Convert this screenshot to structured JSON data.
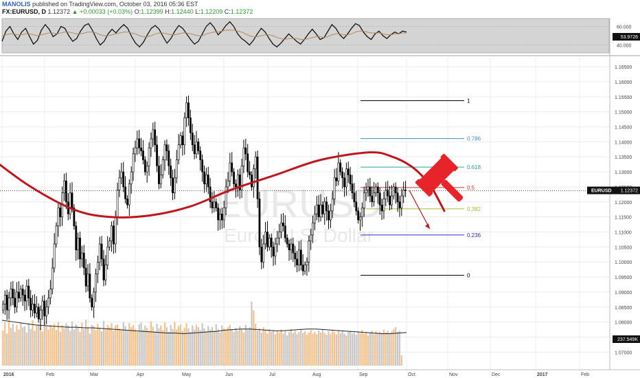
{
  "header": {
    "author": "MANOLIS",
    "published": "published on TradingView.com, October 03, 2016 05:36 EST",
    "symbol": "FX:EURUSD, D",
    "price": "1.12372",
    "change": "▲ +0.00033 (+0.03%)",
    "o_label": "O:",
    "o": "1.12399",
    "h_label": "H:",
    "h": "1.12440",
    "l_label": "L:",
    "l": "1.12209",
    "c_label": "C:",
    "c": "1.12372"
  },
  "watermark": {
    "symbol": "EURUSD",
    "name": "Euro / U.S. Dollar"
  },
  "colors": {
    "candle": "#000000",
    "curve": "#c0161b",
    "hammer": "#e8242b",
    "fib_1": "#000000",
    "fib_0786": "#3a8fc9",
    "fib_0618": "#26a69a",
    "fib_05": "#e53935",
    "fib_0382": "#a0bb2a",
    "fib_0236": "#2c2cc8",
    "fib_0": "#000000",
    "vol_up": "#f5c28c",
    "vol_down": "#c8c8c8",
    "osc_panel": "#d4d4d4"
  },
  "chart_data": [
    {
      "type": "line",
      "panel": "oscillator",
      "ylim": [
        33,
        67
      ],
      "y_ticks": [
        "60.000",
        "40.000"
      ],
      "last_value_label": "53.9726",
      "series": [
        {
          "values": [
            44,
            55,
            60,
            52,
            46,
            54,
            58,
            49,
            41,
            45,
            56,
            62,
            57,
            49,
            52,
            60,
            58,
            50,
            44,
            47,
            55,
            61,
            63,
            56,
            47,
            40,
            44,
            52,
            57,
            53,
            58,
            62,
            58,
            49,
            42,
            38,
            43,
            51,
            58,
            61,
            57,
            49,
            42,
            47,
            55,
            61,
            58,
            52,
            46,
            41,
            44,
            52,
            60,
            64,
            59,
            51,
            55,
            61,
            65,
            60,
            52,
            47,
            44,
            40,
            45,
            52,
            58,
            54,
            47,
            41,
            38,
            42,
            47,
            52,
            48,
            44,
            41,
            46,
            52,
            57,
            52,
            46,
            48,
            55,
            62,
            58,
            51,
            47,
            52,
            58,
            63,
            61,
            54,
            49,
            46,
            52,
            55,
            50,
            47,
            51,
            54,
            52,
            55,
            54
          ]
        },
        {
          "values": [
            50,
            51,
            52,
            52,
            51,
            51,
            52,
            52,
            51,
            50,
            51,
            52,
            53,
            53,
            52,
            53,
            54,
            54,
            53,
            52,
            52,
            53,
            54,
            54,
            53,
            51,
            50,
            50,
            51,
            52,
            53,
            54,
            54,
            53,
            52,
            50,
            49,
            49,
            50,
            52,
            53,
            53,
            52,
            51,
            51,
            52,
            53,
            53,
            52,
            51,
            50,
            50,
            52,
            53,
            54,
            54,
            55,
            56,
            56,
            56,
            55,
            54,
            52,
            50,
            49,
            49,
            50,
            51,
            51,
            50,
            48,
            47,
            46,
            47,
            47,
            47,
            46,
            46,
            47,
            48,
            49,
            49,
            48,
            49,
            51,
            52,
            52,
            51,
            51,
            52,
            54,
            55,
            55,
            54,
            53,
            53,
            53,
            52,
            51,
            51,
            52,
            52,
            53,
            53
          ]
        }
      ]
    },
    {
      "type": "candlestick",
      "panel": "price",
      "ylim": [
        1.0655,
        1.168
      ],
      "y_ticks": [
        "1.16500",
        "1.16000",
        "1.15500",
        "1.15000",
        "1.14500",
        "1.14000",
        "1.13500",
        "1.13000",
        "1.12500",
        "1.12000",
        "1.11500",
        "1.11000",
        "1.10500",
        "1.10000",
        "1.09500",
        "1.09000",
        "1.08500",
        "1.08000",
        "1.07500",
        "1.07000"
      ],
      "x_ticks": [
        "2016",
        "Feb",
        "Mar",
        "Apr",
        "May",
        "Jun",
        "Jul",
        "Aug",
        "Sep",
        "Oct",
        "Nov",
        "Dec",
        "2017",
        "Feb"
      ],
      "last_price_label": "1.12372",
      "symbol_label": "EURUSD",
      "closes": [
        1.086,
        1.089,
        1.084,
        1.088,
        1.091,
        1.088,
        1.085,
        1.09,
        1.088,
        1.091,
        1.089,
        1.087,
        1.092,
        1.088,
        1.084,
        1.086,
        1.083,
        1.085,
        1.081,
        1.084,
        1.087,
        1.082,
        1.085,
        1.088,
        1.091,
        1.098,
        1.106,
        1.112,
        1.118,
        1.115,
        1.123,
        1.127,
        1.12,
        1.116,
        1.123,
        1.118,
        1.112,
        1.104,
        1.108,
        1.101,
        1.103,
        1.098,
        1.092,
        1.096,
        1.088,
        1.085,
        1.09,
        1.096,
        1.1,
        1.106,
        1.101,
        1.094,
        1.099,
        1.105,
        1.107,
        1.112,
        1.106,
        1.115,
        1.124,
        1.128,
        1.13,
        1.125,
        1.121,
        1.119,
        1.126,
        1.13,
        1.136,
        1.138,
        1.141,
        1.138,
        1.137,
        1.134,
        1.13,
        1.132,
        1.138,
        1.141,
        1.144,
        1.139,
        1.132,
        1.126,
        1.129,
        1.134,
        1.139,
        1.137,
        1.132,
        1.128,
        1.123,
        1.128,
        1.134,
        1.139,
        1.142,
        1.139,
        1.148,
        1.153,
        1.148,
        1.143,
        1.139,
        1.136,
        1.14,
        1.137,
        1.134,
        1.13,
        1.126,
        1.129,
        1.125,
        1.12,
        1.118,
        1.12,
        1.118,
        1.114,
        1.116,
        1.114,
        1.118,
        1.125,
        1.127,
        1.133,
        1.13,
        1.126,
        1.125,
        1.129,
        1.124,
        1.132,
        1.138,
        1.136,
        1.13,
        1.129,
        1.125,
        1.131,
        1.135,
        1.121,
        1.105,
        1.1,
        1.106,
        1.11,
        1.105,
        1.108,
        1.105,
        1.102,
        1.106,
        1.108,
        1.11,
        1.113,
        1.112,
        1.108,
        1.106,
        1.104,
        1.106,
        1.103,
        1.101,
        1.099,
        1.104,
        1.099,
        1.097,
        1.099,
        1.1,
        1.107,
        1.109,
        1.113,
        1.116,
        1.119,
        1.115,
        1.119,
        1.116,
        1.12,
        1.117,
        1.114,
        1.117,
        1.121,
        1.128,
        1.127,
        1.133,
        1.13,
        1.128,
        1.125,
        1.131,
        1.129,
        1.126,
        1.123,
        1.12,
        1.117,
        1.114,
        1.115,
        1.118,
        1.123,
        1.124,
        1.125,
        1.122,
        1.12,
        1.123,
        1.125,
        1.123,
        1.119,
        1.117,
        1.121,
        1.124,
        1.122,
        1.119,
        1.122,
        1.125,
        1.123,
        1.12,
        1.118,
        1.122,
        1.124,
        1.1237
      ]
    },
    {
      "type": "bar",
      "panel": "volume",
      "last_value_label": "237.549K",
      "ylim": [
        0,
        1.3
      ],
      "values": [
        0.6,
        0.75,
        0.55,
        0.8,
        0.65,
        0.72,
        0.58,
        0.7,
        0.62,
        0.74,
        0.66,
        0.68,
        0.57,
        0.73,
        0.63,
        0.78,
        0.6,
        0.69,
        0.71,
        0.64,
        0.59,
        0.76,
        0.68,
        0.62,
        0.7,
        0.66,
        0.72,
        0.61,
        0.75,
        0.58,
        0.7,
        0.64,
        0.73,
        0.69,
        0.6,
        0.76,
        0.62,
        0.71,
        0.67,
        0.58,
        0.74,
        0.63,
        0.79,
        0.66,
        0.55,
        0.7,
        0.68,
        0.61,
        0.72,
        0.64,
        0.59,
        0.77,
        0.62,
        0.7,
        0.66,
        0.73,
        0.6,
        0.69,
        0.71,
        0.64,
        0.62,
        0.75,
        0.68,
        0.6,
        0.73,
        0.66,
        0.7,
        0.63,
        0.58,
        0.71,
        0.74,
        0.62,
        0.69,
        0.65,
        0.6,
        0.76,
        0.67,
        0.59,
        0.72,
        0.64,
        0.69,
        0.61,
        0.74,
        0.66,
        0.58,
        0.7,
        0.63,
        0.75,
        0.62,
        0.68,
        0.71,
        0.6,
        0.65,
        0.73,
        0.64,
        0.58,
        0.69,
        0.62,
        0.7,
        0.66,
        0.61,
        0.73,
        0.64,
        0.59,
        0.68,
        0.62,
        0.66,
        0.6,
        0.71,
        0.63,
        0.57,
        0.69,
        0.64,
        0.61,
        0.66,
        0.7,
        0.62,
        0.58,
        0.65,
        0.6,
        0.68,
        0.63,
        0.57,
        0.7,
        0.62,
        0.66,
        1.1,
        0.95,
        0.72,
        0.6,
        0.64,
        0.57,
        0.66,
        0.61,
        0.55,
        0.63,
        0.58,
        0.61,
        0.54,
        0.6,
        0.57,
        0.62,
        0.55,
        0.59,
        0.52,
        0.58,
        0.63,
        0.56,
        0.6,
        0.54,
        0.58,
        0.62,
        0.56,
        0.59,
        0.53,
        0.57,
        0.61,
        0.55,
        0.58,
        0.54,
        0.6,
        0.57,
        0.62,
        0.56,
        0.53,
        0.59,
        0.55,
        0.6,
        0.58,
        0.54,
        0.61,
        0.56,
        0.59,
        0.55,
        0.52,
        0.58,
        0.6,
        0.55,
        0.57,
        0.53,
        0.59,
        0.56,
        0.61,
        0.55,
        0.58,
        0.52,
        0.57,
        0.6,
        0.54,
        0.59,
        0.56,
        0.58,
        0.55,
        0.62,
        0.57,
        0.6,
        0.55,
        0.59,
        0.63,
        0.66,
        0.58,
        0.6,
        0.18
      ],
      "moving_average": [
        0.78,
        0.76,
        0.74,
        0.72,
        0.7,
        0.69,
        0.68,
        0.67,
        0.66,
        0.66,
        0.65,
        0.65,
        0.64,
        0.63,
        0.62,
        0.61,
        0.6,
        0.59,
        0.58,
        0.57,
        0.56,
        0.56,
        0.55,
        0.56,
        0.57,
        0.58,
        0.59,
        0.61,
        0.62,
        0.63,
        0.63,
        0.62,
        0.61,
        0.6,
        0.6,
        0.61,
        0.62,
        0.63,
        0.63,
        0.62,
        0.61,
        0.6,
        0.59,
        0.58,
        0.57,
        0.56,
        0.55,
        0.55,
        0.56,
        0.57
      ]
    }
  ],
  "fibonacci": {
    "start_date_label": "Sep",
    "end_date_label": "Oct",
    "levels": [
      {
        "label": "1",
        "price": 1.1537,
        "color_key": "fib_1"
      },
      {
        "label": "0.786",
        "price": 1.1411,
        "color_key": "fib_0786"
      },
      {
        "label": "0.618",
        "price": 1.1316,
        "color_key": "fib_0618"
      },
      {
        "label": "0.5",
        "price": 1.1248,
        "color_key": "fib_05"
      },
      {
        "label": "0.382",
        "price": 1.1177,
        "color_key": "fib_0382"
      },
      {
        "label": "0.236",
        "price": 1.109,
        "color_key": "fib_0236"
      },
      {
        "label": "0",
        "price": 1.0956,
        "color_key": "fib_0"
      }
    ]
  },
  "annotations": {
    "rounding_curve": [
      [
        -0.5,
        1.1365
      ],
      [
        0.5,
        1.1255
      ],
      [
        1.5,
        1.1175
      ],
      [
        2.3,
        1.115
      ],
      [
        3.2,
        1.1155
      ],
      [
        4.1,
        1.1185
      ],
      [
        5.0,
        1.124
      ],
      [
        6.0,
        1.129
      ],
      [
        7.0,
        1.134
      ],
      [
        8.1,
        1.1365
      ],
      [
        8.6,
        1.135
      ],
      [
        9.0,
        1.132
      ],
      [
        9.3,
        1.128
      ],
      [
        9.5,
        1.124
      ],
      [
        9.75,
        1.117
      ]
    ],
    "arrow": [
      [
        9.75,
        1.117
      ],
      [
        10.1,
        1.112
      ]
    ]
  }
}
